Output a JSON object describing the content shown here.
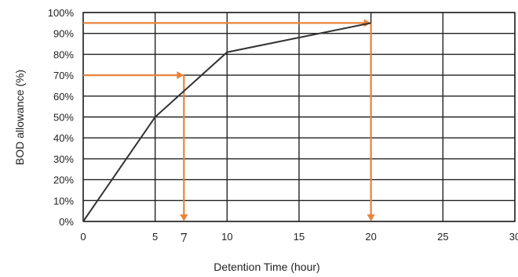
{
  "chart_data": {
    "type": "line",
    "xlabel": "Detention Time (hour)",
    "ylabel": "BOD allowance (%)",
    "xlim": [
      0,
      30
    ],
    "ylim": [
      0,
      100
    ],
    "x_ticks": [
      0,
      5,
      10,
      15,
      20,
      25,
      30
    ],
    "x_tick_labels": [
      "0",
      "5",
      "10",
      "15",
      "20",
      "25",
      "30"
    ],
    "y_ticks": [
      0,
      10,
      20,
      30,
      40,
      50,
      60,
      70,
      80,
      90,
      100
    ],
    "y_tick_labels": [
      "0%",
      "10%",
      "20%",
      "30%",
      "40%",
      "50%",
      "60%",
      "70%",
      "80%",
      "90%",
      "100%"
    ],
    "grid": true,
    "series": [
      {
        "x": [
          0,
          5,
          10,
          15,
          20
        ],
        "y": [
          0,
          50,
          81,
          88,
          95
        ],
        "color": "#333333"
      }
    ],
    "annotations": [
      {
        "label": "7",
        "x": 7,
        "y": 70,
        "color": "#E8833A"
      },
      {
        "label": "20",
        "x": 20,
        "y": 95,
        "color": "#E8833A"
      }
    ]
  }
}
